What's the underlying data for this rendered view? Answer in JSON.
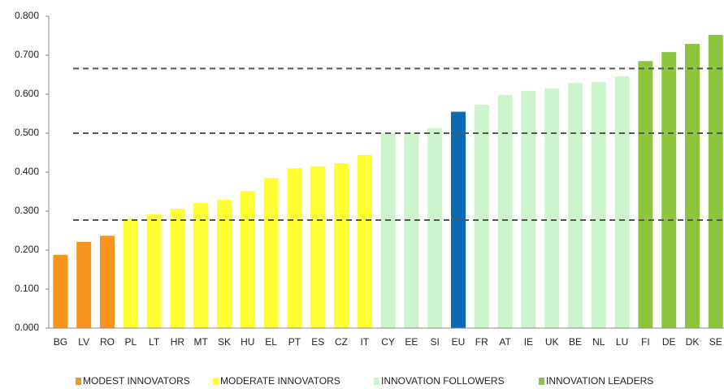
{
  "chart_data": {
    "type": "bar",
    "categories": [
      "BG",
      "LV",
      "RO",
      "PL",
      "LT",
      "HR",
      "MT",
      "SK",
      "HU",
      "EL",
      "PT",
      "ES",
      "CZ",
      "IT",
      "CY",
      "EE",
      "SI",
      "EU",
      "FR",
      "AT",
      "IE",
      "UK",
      "BE",
      "NL",
      "LU",
      "FI",
      "DE",
      "DK",
      "SE"
    ],
    "series": [
      {
        "name": "MODEST INNOVATORS",
        "color": "#f7941d",
        "values": [
          0.188,
          0.221,
          0.237,
          null,
          null,
          null,
          null,
          null,
          null,
          null,
          null,
          null,
          null,
          null,
          null,
          null,
          null,
          null,
          null,
          null,
          null,
          null,
          null,
          null,
          null,
          null,
          null,
          null,
          null
        ]
      },
      {
        "name": "MODERATE INNOVATORS",
        "color": "#ffff33",
        "values": [
          null,
          null,
          null,
          0.279,
          0.292,
          0.306,
          0.321,
          0.329,
          0.352,
          0.385,
          0.41,
          0.415,
          0.423,
          0.444,
          null,
          null,
          null,
          null,
          null,
          null,
          null,
          null,
          null,
          null,
          null,
          null,
          null,
          null,
          null
        ]
      },
      {
        "name": "INNOVATION FOLLOWERS",
        "color": "#ccf5cc",
        "values": [
          null,
          null,
          null,
          null,
          null,
          null,
          null,
          null,
          null,
          null,
          null,
          null,
          null,
          null,
          0.5,
          0.502,
          0.513,
          null,
          0.573,
          0.598,
          0.608,
          0.615,
          0.629,
          0.631,
          0.646,
          null,
          null,
          null,
          null
        ]
      },
      {
        "name": "INNOVATION LEADERS",
        "color": "#8cc63f",
        "values": [
          null,
          null,
          null,
          null,
          null,
          null,
          null,
          null,
          null,
          null,
          null,
          null,
          null,
          null,
          null,
          null,
          null,
          null,
          null,
          null,
          null,
          null,
          null,
          null,
          null,
          0.685,
          0.708,
          0.729,
          0.752
        ]
      },
      {
        "color": "#0b6ab5",
        "values": [
          null,
          null,
          null,
          null,
          null,
          null,
          null,
          null,
          null,
          null,
          null,
          null,
          null,
          null,
          null,
          null,
          null,
          0.555,
          null,
          null,
          null,
          null,
          null,
          null,
          null,
          null,
          null,
          null,
          null
        ]
      }
    ],
    "reference_lines": [
      0.277,
      0.5,
      0.666
    ],
    "ylim": [
      0,
      0.8
    ],
    "yticks": [
      {
        "value": 0,
        "label": "0.000"
      },
      {
        "value": 0.1,
        "label": "0.100"
      },
      {
        "value": 0.2,
        "label": "0.200"
      },
      {
        "value": 0.3,
        "label": "0.300"
      },
      {
        "value": 0.4,
        "label": "0.400"
      },
      {
        "value": 0.5,
        "label": "0.500"
      },
      {
        "value": 0.6,
        "label": "0.600"
      },
      {
        "value": 0.7,
        "label": "0.700"
      },
      {
        "value": 0.8,
        "label": "0.800"
      }
    ]
  }
}
